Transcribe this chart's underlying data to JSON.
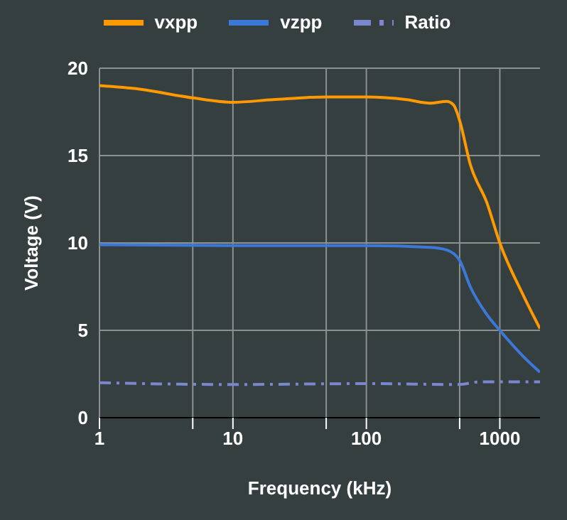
{
  "chart_data": {
    "type": "line",
    "xlabel": "Frequency (kHz)",
    "ylabel": "Voltage (V)",
    "log": "x",
    "xlim": [
      1,
      2000
    ],
    "xticks": [
      1,
      {
        "value": 5,
        "label": null
      },
      10,
      {
        "value": 50,
        "label": null
      },
      100,
      {
        "value": 500,
        "label": null
      },
      1000
    ],
    "ylim": [
      0,
      20
    ],
    "yticks": [
      0,
      5,
      10,
      15,
      20
    ],
    "grid": true,
    "legend": "top",
    "series": [
      {
        "name": "vxpp",
        "color": "#ff9900",
        "x": [
          1,
          2,
          5,
          10,
          20,
          50,
          100,
          200,
          300,
          400,
          450,
          500,
          600,
          800,
          1000,
          1500,
          2000
        ],
        "values": [
          19.0,
          18.8,
          18.3,
          18.05,
          18.2,
          18.35,
          18.35,
          18.2,
          18.0,
          18.1,
          17.9,
          17.0,
          14.5,
          12.3,
          10.0,
          7.0,
          5.1
        ]
      },
      {
        "name": "vzpp",
        "color": "#3c78d8",
        "x": [
          1,
          10,
          100,
          300,
          400,
          500,
          600,
          800,
          1000,
          1500,
          2000
        ],
        "values": [
          9.9,
          9.85,
          9.85,
          9.75,
          9.6,
          9.0,
          7.5,
          5.9,
          5.0,
          3.5,
          2.6
        ]
      },
      {
        "name": "Ratio",
        "color": "#7b86d0",
        "line_style": "dashed",
        "x": [
          1,
          10,
          100,
          500,
          700,
          2000
        ],
        "values": [
          2.0,
          1.9,
          1.95,
          1.9,
          2.05,
          2.05
        ]
      }
    ]
  }
}
